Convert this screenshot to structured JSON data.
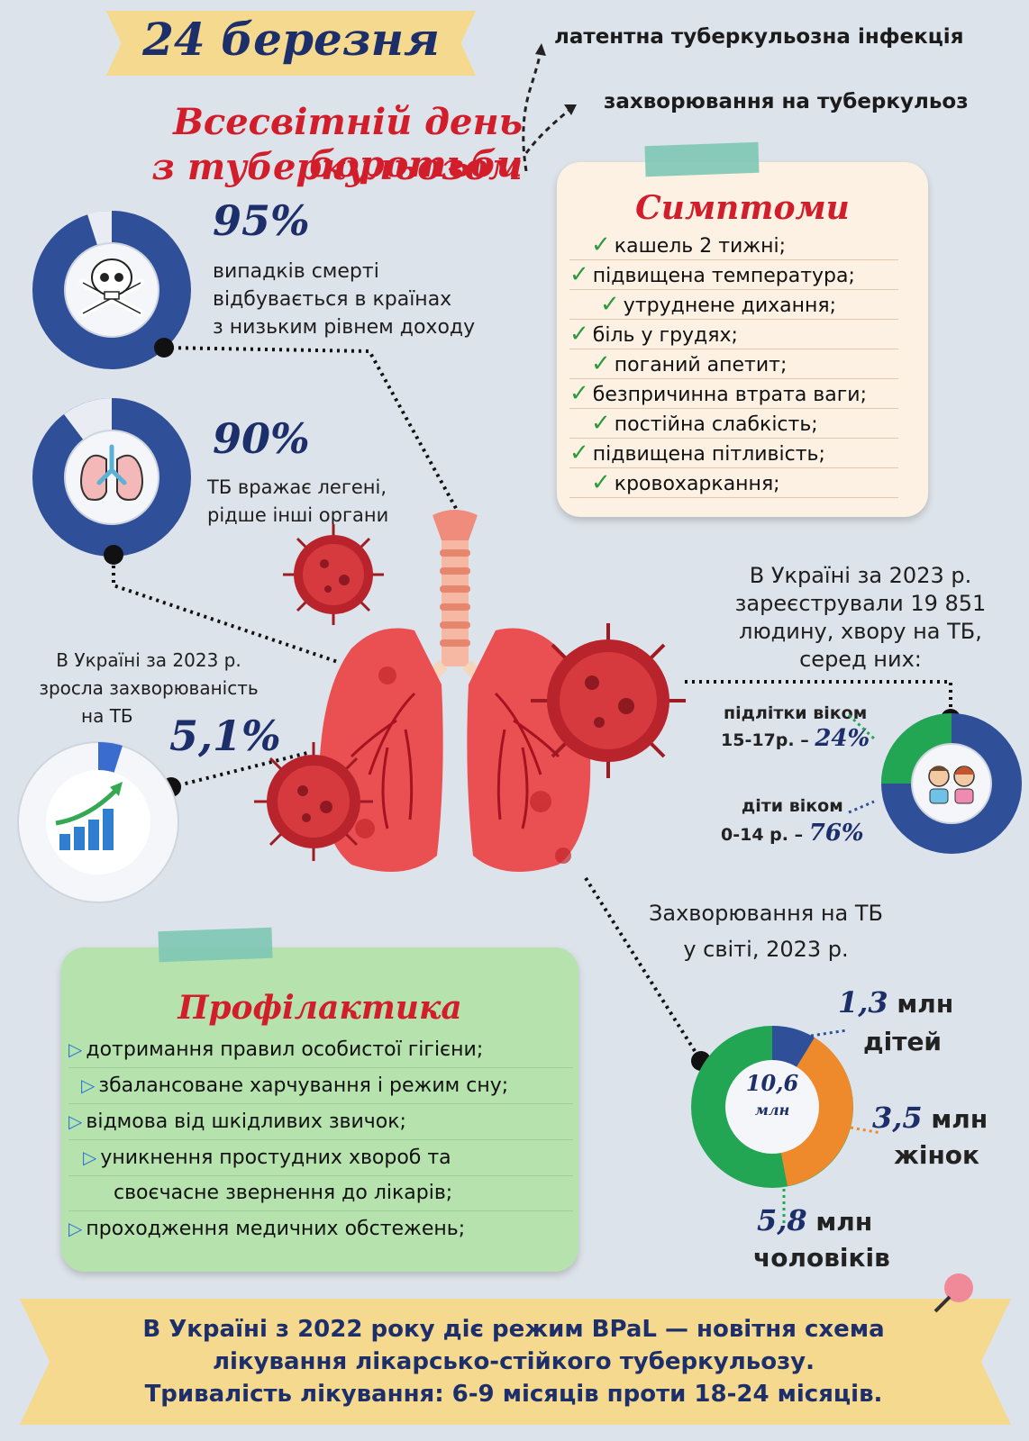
{
  "header": {
    "date": "24 березня",
    "title_line1": "Всесвітній день боротьби",
    "title_line2": "з туберкульозом",
    "branch_top": "латентна туберкульозна інфекція",
    "branch_bottom": "захворювання на туберкульоз"
  },
  "stat_deaths": {
    "percent": "95%",
    "value": 0.95,
    "text": [
      "випадків смерті",
      "відбувається в країнах",
      "з низьким рівнем доходу"
    ],
    "icon": "skull-crossbones-icon"
  },
  "stat_lungs": {
    "percent": "90%",
    "value": 0.9,
    "text": [
      "ТБ вражає легені,",
      "рідше інші органи"
    ],
    "icon": "lungs-icon"
  },
  "stat_growth": {
    "text": [
      "В Україні за 2023 р.",
      "зросла захворюваність",
      "на ТБ"
    ],
    "percent": "5,1%",
    "value": 0.051,
    "icon": "growth-chart-icon"
  },
  "symptoms": {
    "title": "Симптоми",
    "items": [
      "кашель 2 тижні;",
      "підвищена температура;",
      "утруднене дихання;",
      "біль у грудях;",
      "поганий апетит;",
      "безпричинна втрата ваги;",
      "постійна слабкість;",
      "підвищена пітливість;",
      "кровохаркання;"
    ]
  },
  "ukraine_cases": {
    "text": [
      "В Україні за 2023 р.",
      "зареєстрували 19 851",
      "людину, хвору на ТБ,",
      "серед них:"
    ],
    "teens_label": [
      "підлітки віком",
      "15-17р. –"
    ],
    "teens_pct": "24%",
    "children_label": [
      "діти віком",
      "0-14 р. –"
    ],
    "children_pct": "76%",
    "icon": "children-icon"
  },
  "world": {
    "title": [
      "Захворювання на ТБ",
      "у світі, 2023 р."
    ],
    "center": [
      "10,6",
      "млн"
    ],
    "children_value": "1,3",
    "children_unit": "млн",
    "children_label": "дітей",
    "women_value": "3,5",
    "women_unit": "млн",
    "women_label": "жінок",
    "men_value": "5,8",
    "men_unit": "млн",
    "men_label": "чоловіків"
  },
  "prevention": {
    "title": "Профілактика",
    "items": [
      "дотримання правил особистої гігієни;",
      "збалансоване харчування і режим сну;",
      "відмова від шкідливих звичок;",
      "уникнення простудних хвороб та",
      "своєчасне звернення до лікарів;",
      "проходження медичних обстежень;"
    ]
  },
  "footer": {
    "lines": [
      "В Україні з 2022 року діє режим BPaL — новітня схема",
      "лікування лікарсько-стійкого туберкульозу.",
      "Тривалість лікування: 6-9 місяців проти 18-24 місяців."
    ]
  },
  "colors": {
    "navy": "#2f4f99",
    "red": "#d21e2a",
    "green": "#22a654",
    "orange": "#ef8a2c",
    "light_blue": "#3a6cd0"
  }
}
